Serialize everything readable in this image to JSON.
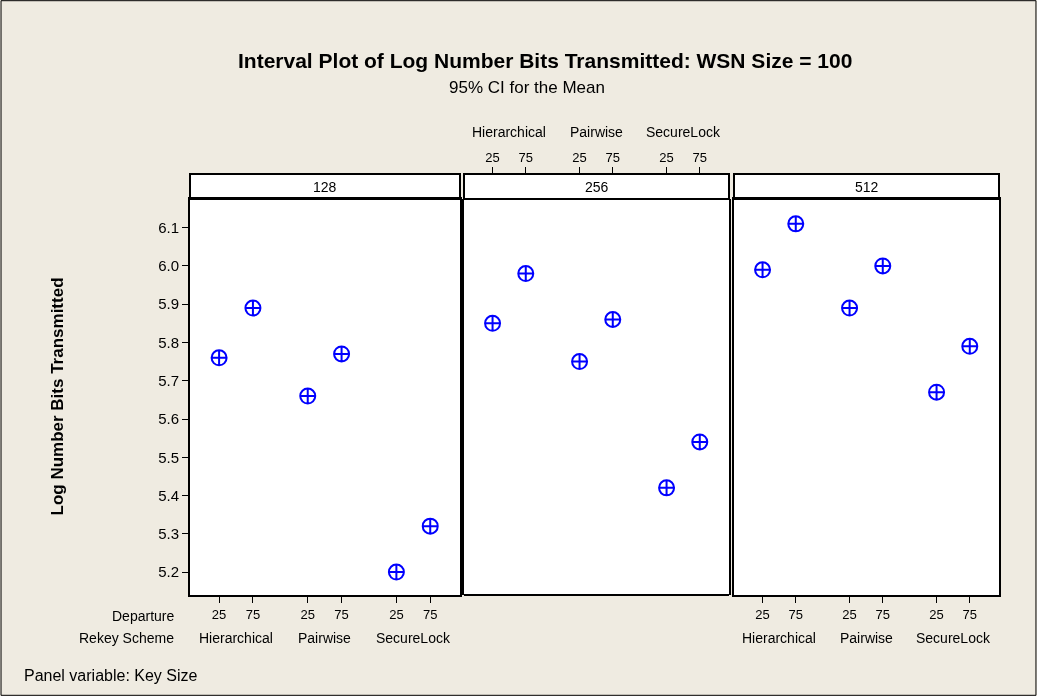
{
  "chart_data": [
    {
      "type": "scatter",
      "title": "128",
      "ylabel": "Log Number Bits Transmitted",
      "categories": [
        "25",
        "75",
        "25",
        "75",
        "25",
        "75"
      ],
      "values": [
        5.76,
        5.89,
        5.66,
        5.77,
        5.2,
        5.32
      ],
      "color": "#0000ff",
      "marker": "cross",
      "ylim": [
        5.14,
        6.175
      ],
      "yticks": [
        5.2,
        5.3,
        5.4,
        5.5,
        5.6,
        5.7,
        5.8,
        5.9,
        {
          "value": 6.0,
          "label": "6.0"
        },
        6.1
      ],
      "grid": false,
      "legend": false,
      "annotations": [
        "Interval Plot of Log Number Bits Transmitted: WSN Size = 100",
        "95% CI for the Mean",
        "Departure",
        "Rekey Scheme",
        "Panel variable: Key Size",
        "Hierarchical",
        "Pairwise",
        "SecureLock"
      ]
    },
    {
      "type": "scatter",
      "title": "256",
      "categories": [
        "25",
        "75",
        "25",
        "75",
        "25",
        "75"
      ],
      "values": [
        5.85,
        5.98,
        5.75,
        5.86,
        5.42,
        5.54
      ],
      "color": "#0000ff",
      "marker": "cross",
      "ylim": [
        5.14,
        6.175
      ],
      "grid": false,
      "legend": false,
      "tick_labels": "x",
      "annotations": [
        "Hierarchical",
        "Pairwise",
        "SecureLock"
      ]
    },
    {
      "type": "scatter",
      "title": "512",
      "categories": [
        "25",
        "75",
        "25",
        "75",
        "25",
        "75"
      ],
      "values": [
        5.99,
        6.11,
        5.89,
        6.0,
        5.67,
        5.79
      ],
      "color": "#0000ff",
      "marker": "cross",
      "ylim": [
        5.14,
        6.175
      ],
      "grid": false,
      "legend": false,
      "tick_labels": "x",
      "annotations": [
        "Hierarchical",
        "Pairwise",
        "SecureLock"
      ]
    }
  ]
}
